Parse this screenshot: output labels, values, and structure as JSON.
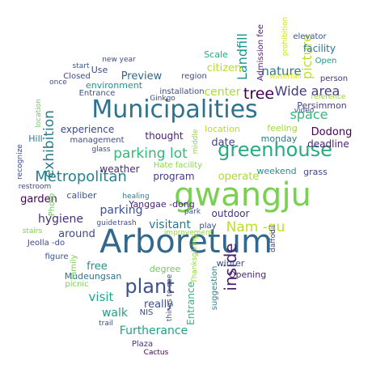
{
  "word_cloud": {
    "words": [
      {
        "text": "Arboretum",
        "color": "#31688e"
      },
      {
        "text": "gwangju",
        "color": "#7ad151"
      },
      {
        "text": "Municipalities",
        "color": "#2c728e"
      },
      {
        "text": "greenhouse",
        "color": "#25ab82"
      },
      {
        "text": "Metropolitan",
        "color": "#26828e"
      },
      {
        "text": "plant",
        "color": "#3b528b"
      },
      {
        "text": "parking lot",
        "color": "#35b779"
      },
      {
        "text": "inside",
        "color": "#481f70"
      },
      {
        "text": "Nam -gu",
        "color": "#bddf26"
      },
      {
        "text": "exhibition",
        "color": "#287c8e"
      },
      {
        "text": "tree",
        "color": "#440154"
      },
      {
        "text": "Landfill",
        "color": "#21918c"
      },
      {
        "text": "Wide area",
        "color": "#443983"
      },
      {
        "text": "picture",
        "color": "#bddf26"
      },
      {
        "text": "nature",
        "color": "#2a788e"
      },
      {
        "text": "space",
        "color": "#35b779"
      },
      {
        "text": "center",
        "color": "#aadc32"
      },
      {
        "text": "visitant",
        "color": "#2a788e"
      },
      {
        "text": "Furtherance",
        "color": "#1fa187"
      },
      {
        "text": "visit",
        "color": "#20a486"
      },
      {
        "text": "Preview",
        "color": "#31688e"
      },
      {
        "text": "parking",
        "color": "#3b528b"
      },
      {
        "text": "hygiene",
        "color": "#472d7b"
      },
      {
        "text": "Dodong",
        "color": "#440154"
      },
      {
        "text": "date",
        "color": "#414487"
      },
      {
        "text": "citizen",
        "color": "#b5de2b"
      },
      {
        "text": "walk",
        "color": "#1fa187"
      },
      {
        "text": "garden",
        "color": "#440154"
      },
      {
        "text": "monday",
        "color": "#287c8e"
      },
      {
        "text": "around",
        "color": "#3e4a89"
      },
      {
        "text": "free",
        "color": "#21918c"
      },
      {
        "text": "Entrance",
        "color": "#35b779"
      },
      {
        "text": "really",
        "color": "#3b528b"
      },
      {
        "text": "facility",
        "color": "#2d708e"
      },
      {
        "text": "weather",
        "color": "#482878"
      },
      {
        "text": "program",
        "color": "#453781"
      },
      {
        "text": "operate",
        "color": "#addc30"
      },
      {
        "text": "outdoor",
        "color": "#46327e"
      },
      {
        "text": "feeling",
        "color": "#a0da39"
      },
      {
        "text": "deadline",
        "color": "#481f70"
      },
      {
        "text": "experience",
        "color": "#3e4989"
      },
      {
        "text": "thought",
        "color": "#482173"
      },
      {
        "text": "location",
        "color": "#b8de29"
      },
      {
        "text": "environment",
        "color": "#21918c"
      },
      {
        "text": "Scale",
        "color": "#22a884"
      },
      {
        "text": "Persimmon",
        "color": "#433e85"
      },
      {
        "text": "Use",
        "color": "#3e4a89"
      },
      {
        "text": "weekend",
        "color": "#21918c"
      },
      {
        "text": "grass",
        "color": "#414487"
      },
      {
        "text": "Mudeungsan",
        "color": "#2c728e"
      },
      {
        "text": "caliber",
        "color": "#3b528b"
      },
      {
        "text": "Yanggae -dong",
        "color": "#482475"
      },
      {
        "text": "Hill",
        "color": "#2a788e"
      },
      {
        "text": "degree",
        "color": "#6ccd5a"
      },
      {
        "text": "winter",
        "color": "#3e4a89"
      },
      {
        "text": "Opening",
        "color": "#481f70"
      },
      {
        "text": "suggestion",
        "color": "#26828e"
      },
      {
        "text": "region",
        "color": "#3e4989"
      },
      {
        "text": "Closed",
        "color": "#3e4a89"
      },
      {
        "text": "installation",
        "color": "#3e4989"
      },
      {
        "text": "person",
        "color": "#46337e"
      },
      {
        "text": "Open",
        "color": "#1f988b"
      },
      {
        "text": "elevator",
        "color": "#3b528b"
      },
      {
        "text": "Admission fee",
        "color": "#481f70"
      },
      {
        "text": "Entrance",
        "color": "#3b528b"
      },
      {
        "text": "management",
        "color": "#3e4a89"
      },
      {
        "text": "play",
        "color": "#3e4989"
      },
      {
        "text": "Photo",
        "color": "#6ccd5a"
      },
      {
        "text": "Hate facility",
        "color": "#8fd744"
      },
      {
        "text": "figure",
        "color": "#3b528b"
      },
      {
        "text": "Plaza",
        "color": "#46327e"
      },
      {
        "text": "NIS",
        "color": "#3e4a89"
      },
      {
        "text": "Cactus",
        "color": "#440154"
      },
      {
        "text": "family",
        "color": "#77d153"
      },
      {
        "text": "picnic",
        "color": "#7ad151"
      },
      {
        "text": "Jeolla -do",
        "color": "#3e4a89"
      },
      {
        "text": "stairs",
        "color": "#7ad151"
      },
      {
        "text": "guide",
        "color": "#3b528b"
      },
      {
        "text": "trash",
        "color": "#433e85"
      },
      {
        "text": "healing",
        "color": "#287d8e"
      },
      {
        "text": "park",
        "color": "#3b528b"
      },
      {
        "text": "improvement",
        "color": "#95d840"
      },
      {
        "text": "daffodil",
        "color": "#3e4989"
      },
      {
        "text": "trail",
        "color": "#3e4a89"
      },
      {
        "text": "Thanksgiving",
        "color": "#95d840"
      },
      {
        "text": "things to see",
        "color": "#3e4989"
      },
      {
        "text": "video",
        "color": "#3e4a89"
      },
      {
        "text": "reference",
        "color": "#95d840"
      },
      {
        "text": "waterfall",
        "color": "#e5e419"
      },
      {
        "text": "prohibition",
        "color": "#c8e020"
      },
      {
        "text": "new year",
        "color": "#3e4989"
      },
      {
        "text": "start",
        "color": "#3b528b"
      },
      {
        "text": "once",
        "color": "#3e4989"
      },
      {
        "text": "Ginkgo",
        "color": "#3e4989"
      },
      {
        "text": "glass",
        "color": "#3e4989"
      },
      {
        "text": "restroom",
        "color": "#3e4989"
      },
      {
        "text": "recognize",
        "color": "#3e4989"
      },
      {
        "text": "location",
        "color": "#6ccd5a"
      },
      {
        "text": "middle",
        "color": "#8fd744"
      }
    ]
  }
}
